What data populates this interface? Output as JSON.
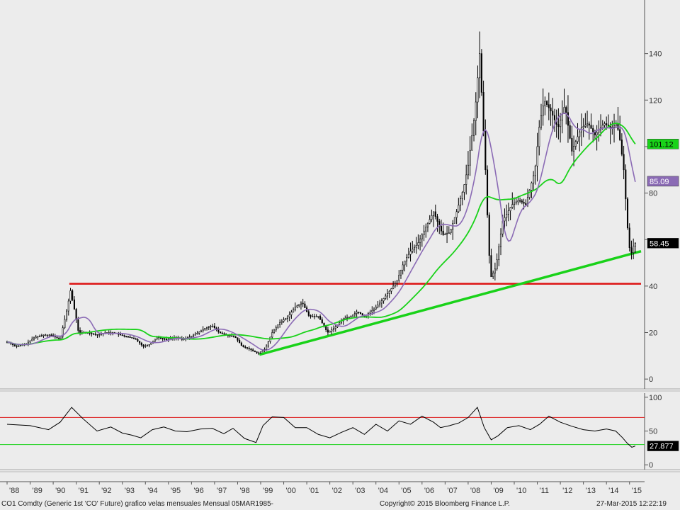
{
  "footer": {
    "left": "CO1 Comdty (Generic 1st 'CO' Future) grafico velas mensuales  Mensual 05MAR1985-",
    "center": "Copyright© 2015 Bloomberg Finance L.P.",
    "right": "27-Mar-2015 12:22:19"
  },
  "colors": {
    "background": "#ececec",
    "candle": "#000000",
    "ma_fast": "#8b6bb5",
    "ma_slow": "#19d219",
    "trendline": "#19d219",
    "resistance": "#dd1111",
    "rsi_line": "#000000",
    "rsi_upper": "#dd1111",
    "rsi_lower": "#19d219"
  },
  "chart_data": [
    {
      "type": "candlestick",
      "x_tick_labels": [
        "'88",
        "'89",
        "'90",
        "'91",
        "'92",
        "'93",
        "'94",
        "'95",
        "'96",
        "'97",
        "'98",
        "'99",
        "'00",
        "'01",
        "'02",
        "'03",
        "'04",
        "'05",
        "'06",
        "'07",
        "'08",
        "'09",
        "'10",
        "'11",
        "'12",
        "'13",
        "'14",
        "'15"
      ],
      "x_years": [
        1988,
        1989,
        1990,
        1991,
        1992,
        1993,
        1994,
        1995,
        1996,
        1997,
        1998,
        1999,
        2000,
        2001,
        2002,
        2003,
        2004,
        2005,
        2006,
        2007,
        2008,
        2009,
        2010,
        2011,
        2012,
        2013,
        2014,
        2015
      ],
      "xlim": [
        1988.0,
        2015.5
      ],
      "y_ticks": [
        0,
        20,
        40,
        60,
        80,
        100,
        120,
        140
      ],
      "y_tick_labels": [
        "0",
        "20",
        "40",
        "",
        "80",
        "",
        "120",
        "140"
      ],
      "ylim": [
        -3,
        160
      ],
      "price_path": [
        [
          1988.0,
          16
        ],
        [
          1988.4,
          14
        ],
        [
          1988.8,
          15
        ],
        [
          1989.2,
          18
        ],
        [
          1989.6,
          19
        ],
        [
          1989.9,
          19
        ],
        [
          1990.3,
          17
        ],
        [
          1990.6,
          30
        ],
        [
          1990.75,
          38
        ],
        [
          1990.9,
          31
        ],
        [
          1991.1,
          20
        ],
        [
          1991.5,
          20
        ],
        [
          1991.9,
          19
        ],
        [
          1992.3,
          20
        ],
        [
          1992.6,
          20
        ],
        [
          1992.9,
          19
        ],
        [
          1993.3,
          18
        ],
        [
          1993.6,
          17
        ],
        [
          1993.9,
          14
        ],
        [
          1994.2,
          15
        ],
        [
          1994.5,
          18
        ],
        [
          1994.9,
          17
        ],
        [
          1995.3,
          18
        ],
        [
          1995.6,
          17
        ],
        [
          1995.9,
          18
        ],
        [
          1996.3,
          20
        ],
        [
          1996.6,
          22
        ],
        [
          1996.9,
          23
        ],
        [
          1997.2,
          20
        ],
        [
          1997.5,
          19
        ],
        [
          1997.9,
          18
        ],
        [
          1998.2,
          14
        ],
        [
          1998.5,
          13
        ],
        [
          1998.9,
          11
        ],
        [
          1999.2,
          13
        ],
        [
          1999.5,
          20
        ],
        [
          1999.8,
          24
        ],
        [
          2000.2,
          27
        ],
        [
          2000.5,
          31
        ],
        [
          2000.8,
          33
        ],
        [
          2001.1,
          27
        ],
        [
          2001.5,
          27
        ],
        [
          2001.9,
          20
        ],
        [
          2002.2,
          22
        ],
        [
          2002.6,
          26
        ],
        [
          2002.9,
          27
        ],
        [
          2003.2,
          29
        ],
        [
          2003.5,
          27
        ],
        [
          2003.9,
          30
        ],
        [
          2004.2,
          33
        ],
        [
          2004.6,
          38
        ],
        [
          2004.9,
          42
        ],
        [
          2005.2,
          50
        ],
        [
          2005.5,
          55
        ],
        [
          2005.8,
          58
        ],
        [
          2006.2,
          66
        ],
        [
          2006.5,
          72
        ],
        [
          2006.9,
          62
        ],
        [
          2007.2,
          63
        ],
        [
          2007.5,
          72
        ],
        [
          2007.8,
          82
        ],
        [
          2008.0,
          92
        ],
        [
          2008.3,
          115
        ],
        [
          2008.5,
          140
        ],
        [
          2008.6,
          120
        ],
        [
          2008.75,
          90
        ],
        [
          2008.9,
          55
        ],
        [
          2009.0,
          44
        ],
        [
          2009.2,
          48
        ],
        [
          2009.5,
          68
        ],
        [
          2009.9,
          75
        ],
        [
          2010.2,
          77
        ],
        [
          2010.5,
          75
        ],
        [
          2010.9,
          90
        ],
        [
          2011.1,
          110
        ],
        [
          2011.3,
          120
        ],
        [
          2011.6,
          115
        ],
        [
          2011.9,
          108
        ],
        [
          2012.2,
          118
        ],
        [
          2012.5,
          98
        ],
        [
          2012.9,
          108
        ],
        [
          2013.2,
          110
        ],
        [
          2013.5,
          105
        ],
        [
          2013.9,
          110
        ],
        [
          2014.2,
          108
        ],
        [
          2014.45,
          110
        ],
        [
          2014.6,
          102
        ],
        [
          2014.75,
          90
        ],
        [
          2014.85,
          75
        ],
        [
          2014.95,
          60
        ],
        [
          2015.05,
          53
        ],
        [
          2015.15,
          57
        ],
        [
          2015.25,
          58.45
        ]
      ],
      "trendline": {
        "from": [
          1998.95,
          10.5
        ],
        "to": [
          2015.5,
          55
        ]
      },
      "resistance": {
        "y": 41,
        "from_x": 1990.7,
        "to_x": 2015.5
      },
      "ma_fast_label": "85.09",
      "ma_slow_label": "101.12",
      "last_price_label": "58.45",
      "ma_fast_last": 85.09,
      "ma_slow_last": 101.12,
      "last_price": 58.45
    },
    {
      "type": "line",
      "name": "RSI",
      "y_ticks": [
        0,
        50,
        100
      ],
      "y_tick_labels": [
        "0",
        "50",
        "100"
      ],
      "ylim": [
        -5,
        105
      ],
      "upper_level": 70,
      "lower_level": 30,
      "last_value_label": "27.877",
      "last_value": 27.877,
      "x": [
        1988.0,
        1989.0,
        1989.8,
        1990.3,
        1990.8,
        1991.3,
        1991.9,
        1992.5,
        1993.0,
        1993.4,
        1993.8,
        1994.3,
        1994.8,
        1995.3,
        1995.8,
        1996.4,
        1996.9,
        1997.4,
        1997.8,
        1998.3,
        1998.8,
        1999.1,
        1999.5,
        2000.0,
        2000.5,
        2001.0,
        2001.5,
        2002.0,
        2002.5,
        2003.0,
        2003.5,
        2004.0,
        2004.5,
        2005.0,
        2005.5,
        2006.0,
        2006.5,
        2006.8,
        2007.2,
        2007.6,
        2008.0,
        2008.4,
        2008.7,
        2009.0,
        2009.3,
        2009.7,
        2010.2,
        2010.7,
        2011.1,
        2011.5,
        2012.0,
        2012.5,
        2013.0,
        2013.5,
        2014.0,
        2014.4,
        2014.7,
        2014.9,
        2015.1,
        2015.25
      ],
      "values": [
        60,
        58,
        52,
        63,
        85,
        68,
        50,
        56,
        47,
        44,
        40,
        52,
        56,
        50,
        49,
        53,
        54,
        46,
        54,
        39,
        33,
        58,
        71,
        70,
        55,
        55,
        45,
        40,
        48,
        55,
        45,
        60,
        50,
        65,
        60,
        72,
        63,
        55,
        58,
        62,
        70,
        85,
        55,
        37,
        43,
        55,
        58,
        52,
        60,
        72,
        63,
        57,
        52,
        50,
        53,
        50,
        40,
        32,
        26,
        27.877
      ]
    }
  ]
}
